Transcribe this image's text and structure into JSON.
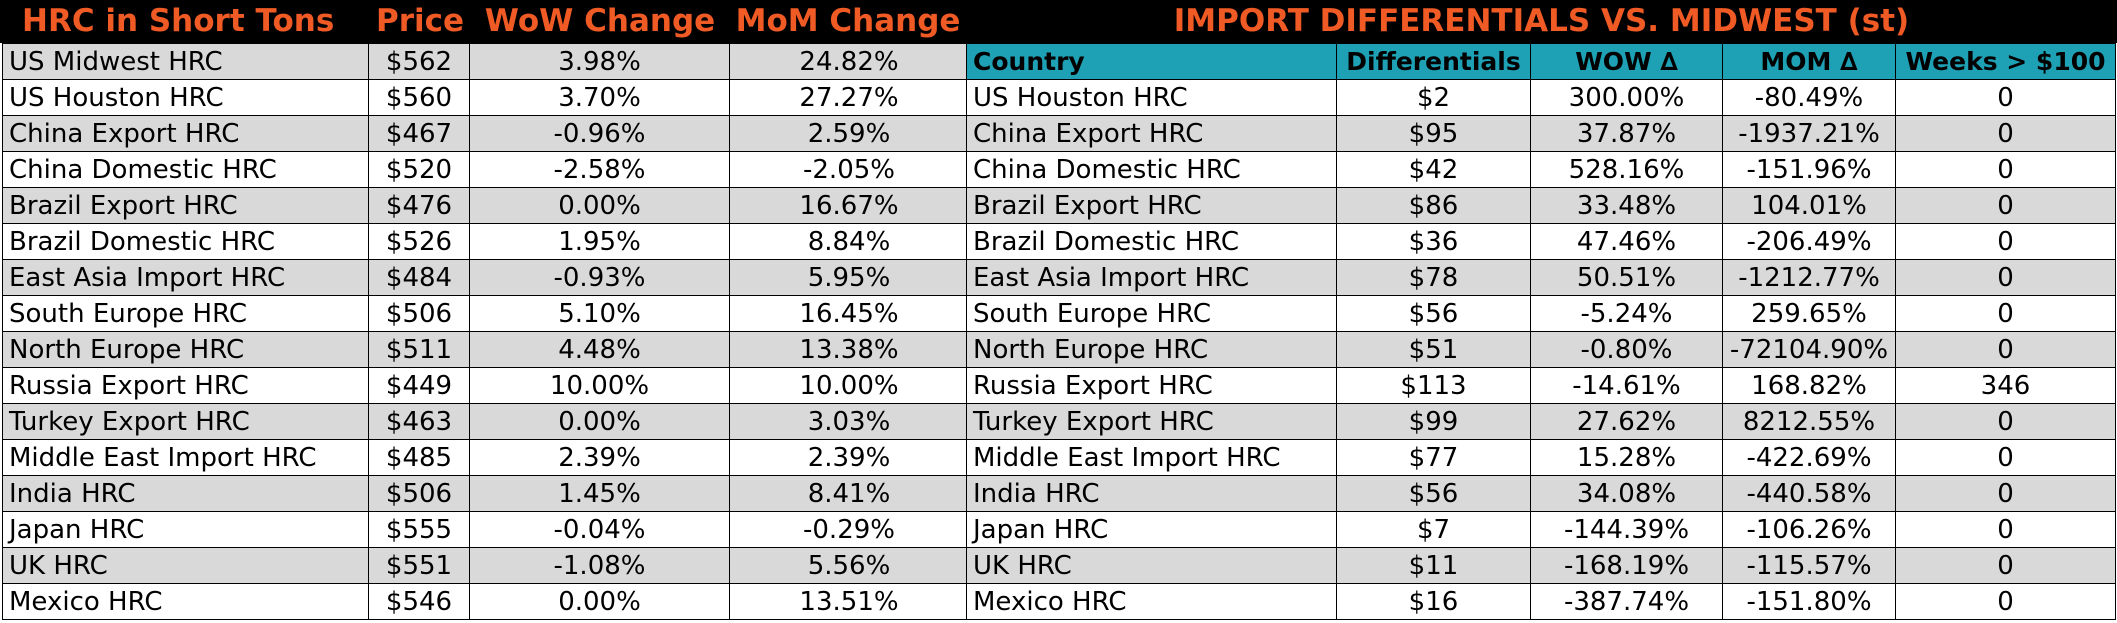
{
  "left": {
    "headers": [
      "HRC in Short Tons",
      "Price",
      "WoW Change",
      "MoM Change"
    ],
    "rows": [
      [
        "US Midwest HRC",
        "$562",
        "3.98%",
        "24.82%"
      ],
      [
        "US Houston HRC",
        "$560",
        "3.70%",
        "27.27%"
      ],
      [
        "China Export HRC",
        "$467",
        "-0.96%",
        "2.59%"
      ],
      [
        "China Domestic HRC",
        "$520",
        "-2.58%",
        "-2.05%"
      ],
      [
        "Brazil Export HRC",
        "$476",
        "0.00%",
        "16.67%"
      ],
      [
        "Brazil Domestic HRC",
        "$526",
        "1.95%",
        "8.84%"
      ],
      [
        "East Asia Import HRC",
        "$484",
        "-0.93%",
        "5.95%"
      ],
      [
        "South Europe HRC",
        "$506",
        "5.10%",
        "16.45%"
      ],
      [
        "North Europe HRC",
        "$511",
        "4.48%",
        "13.38%"
      ],
      [
        "Russia Export HRC",
        "$449",
        "10.00%",
        "10.00%"
      ],
      [
        "Turkey Export HRC",
        "$463",
        "0.00%",
        "3.03%"
      ],
      [
        "Middle East Import HRC",
        "$485",
        "2.39%",
        "2.39%"
      ],
      [
        "India HRC",
        "$506",
        "1.45%",
        "8.41%"
      ],
      [
        "Japan HRC",
        "$555",
        "-0.04%",
        "-0.29%"
      ],
      [
        "UK HRC",
        "$551",
        "-1.08%",
        "5.56%"
      ],
      [
        "Mexico HRC",
        "$546",
        "0.00%",
        "13.51%"
      ]
    ]
  },
  "right": {
    "title": "IMPORT DIFFERENTIALS VS. MIDWEST (st)",
    "headers": [
      "Country",
      "Differentials",
      "WOW ∆",
      "MOM ∆",
      "Weeks > $100"
    ],
    "rows": [
      [
        "US Houston HRC",
        "$2",
        "300.00%",
        "-80.49%",
        "0"
      ],
      [
        "China Export HRC",
        "$95",
        "37.87%",
        "-1937.21%",
        "0"
      ],
      [
        "China Domestic HRC",
        "$42",
        "528.16%",
        "-151.96%",
        "0"
      ],
      [
        "Brazil Export HRC",
        "$86",
        "33.48%",
        "104.01%",
        "0"
      ],
      [
        "Brazil Domestic HRC",
        "$36",
        "47.46%",
        "-206.49%",
        "0"
      ],
      [
        "East Asia Import HRC",
        "$78",
        "50.51%",
        "-1212.77%",
        "0"
      ],
      [
        "South Europe HRC",
        "$56",
        "-5.24%",
        "259.65%",
        "0"
      ],
      [
        "North Europe HRC",
        "$51",
        "-0.80%",
        "-72104.90%",
        "0"
      ],
      [
        "Russia Export HRC",
        "$113",
        "-14.61%",
        "168.82%",
        "346"
      ],
      [
        "Turkey Export HRC",
        "$99",
        "27.62%",
        "8212.55%",
        "0"
      ],
      [
        "Middle East Import HRC",
        "$77",
        "15.28%",
        "-422.69%",
        "0"
      ],
      [
        "India HRC",
        "$56",
        "34.08%",
        "-440.58%",
        "0"
      ],
      [
        "Japan HRC",
        "$7",
        "-144.39%",
        "-106.26%",
        "0"
      ],
      [
        "UK HRC",
        "$11",
        "-168.19%",
        "-115.57%",
        "0"
      ],
      [
        "Mexico HRC",
        "$16",
        "-387.74%",
        "-151.80%",
        "0"
      ]
    ]
  },
  "colors": {
    "title_orange": "#f05a24",
    "header_bg": "#000000",
    "teal_header": "#1ea1b5",
    "row_gray": "#d9d9d9",
    "row_white": "#ffffff"
  }
}
